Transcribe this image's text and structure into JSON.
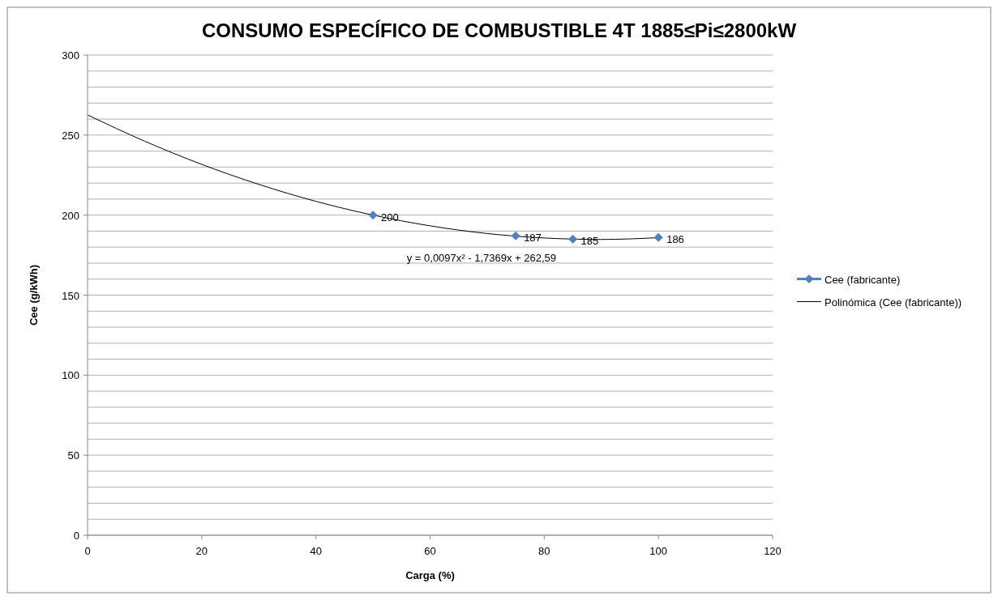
{
  "chart_data": {
    "type": "scatter",
    "title": "CONSUMO ESPECÍFICO DE COMBUSTIBLE 4T 1885≤Pi≤2800kW",
    "xlabel": "Carga (%)",
    "ylabel": "Cee (g/kWh)",
    "xlim": [
      0,
      120
    ],
    "xticks": [
      0,
      20,
      40,
      60,
      80,
      100,
      120
    ],
    "ylim": [
      0,
      300
    ],
    "yticks": [
      0,
      {
        "value": 10,
        "label": null
      },
      {
        "value": 20,
        "label": null
      },
      {
        "value": 30,
        "label": null
      },
      {
        "value": 40,
        "label": null
      },
      50,
      {
        "value": 60,
        "label": null
      },
      {
        "value": 70,
        "label": null
      },
      {
        "value": 80,
        "label": null
      },
      {
        "value": 90,
        "label": null
      },
      100,
      {
        "value": 110,
        "label": null
      },
      {
        "value": 120,
        "label": null
      },
      {
        "value": 130,
        "label": null
      },
      {
        "value": 140,
        "label": null
      },
      150,
      {
        "value": 160,
        "label": null
      },
      {
        "value": 170,
        "label": null
      },
      {
        "value": 180,
        "label": null
      },
      {
        "value": 190,
        "label": null
      },
      200,
      {
        "value": 210,
        "label": null
      },
      {
        "value": 220,
        "label": null
      },
      {
        "value": 230,
        "label": null
      },
      {
        "value": 240,
        "label": null
      },
      250,
      {
        "value": 260,
        "label": null
      },
      {
        "value": 270,
        "label": null
      },
      {
        "value": 280,
        "label": null
      },
      {
        "value": 290,
        "label": null
      },
      300
    ],
    "grid": "y",
    "legend": "right",
    "series": [
      {
        "name": "Cee (fabricante)",
        "color": "#4f81bd",
        "marker": "diamond",
        "x": [
          50,
          75,
          85,
          100
        ],
        "values": [
          200,
          187,
          185,
          186
        ],
        "value_labels": [
          "200",
          "187",
          "185",
          "186"
        ]
      },
      {
        "name": "Polinómica (Cee (fabricante))",
        "type": "line",
        "color": "#000000",
        "x": [
          0,
          10,
          20,
          30,
          40,
          50,
          60,
          70,
          80,
          90,
          100
        ],
        "values": [
          262.6,
          246.2,
          231.7,
          219.2,
          208.6,
          200.0,
          193.3,
          188.5,
          185.7,
          184.8,
          185.9
        ]
      }
    ],
    "annotations": [
      "y = 0,0097x² - 1,7369x + 262,59"
    ]
  }
}
